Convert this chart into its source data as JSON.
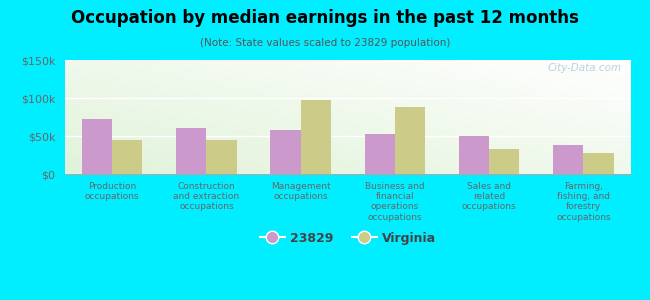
{
  "title": "Occupation by median earnings in the past 12 months",
  "subtitle": "(Note: State values scaled to 23829 population)",
  "categories": [
    "Production\noccupations",
    "Construction\nand extraction\noccupations",
    "Management\noccupations",
    "Business and\nfinancial\noperations\noccupations",
    "Sales and\nrelated\noccupations",
    "Farming,\nfishing, and\nforestry\noccupations"
  ],
  "values_23829": [
    72000,
    60000,
    58000,
    53000,
    50000,
    38000
  ],
  "values_virginia": [
    45000,
    45000,
    98000,
    88000,
    33000,
    28000
  ],
  "color_23829": "#cc99cc",
  "color_virginia": "#cccc88",
  "background_outer": "#00eeff",
  "ylim": [
    0,
    150000
  ],
  "yticks": [
    0,
    50000,
    100000,
    150000
  ],
  "ytick_labels": [
    "$0",
    "$50k",
    "$100k",
    "$150k"
  ],
  "legend_label_1": "23829",
  "legend_label_2": "Virginia",
  "watermark": "City-Data.com"
}
